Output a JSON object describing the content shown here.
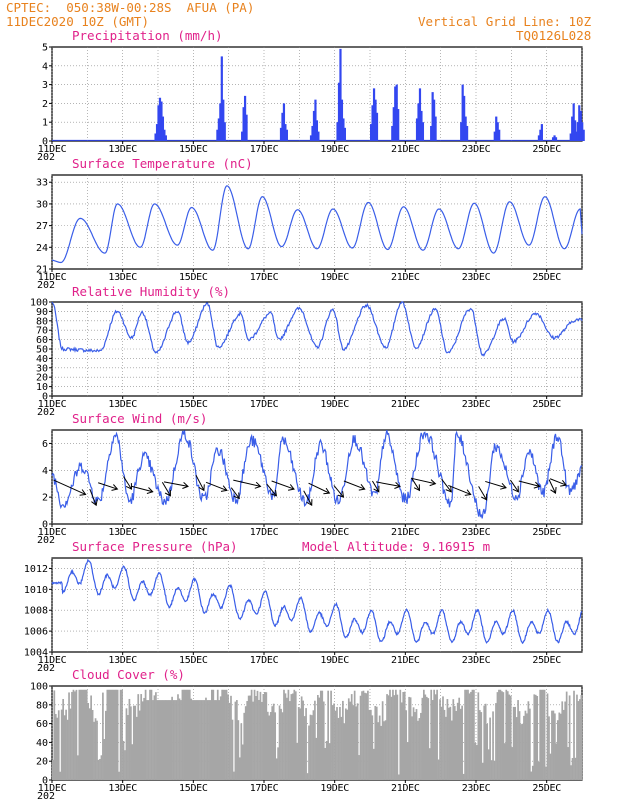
{
  "header": {
    "station_line": "CPTEC:  050:38W-00:28S  AFUA (PA)",
    "date_line": "11DEC2020 10Z (GMT)",
    "grid_note": "Vertical Grid Line: 10Z",
    "code": "TQ0126L028"
  },
  "colors": {
    "header": "#e8821e",
    "title": "#e0218a",
    "line": "#3a5ee8",
    "bar": "#3347f0",
    "cloud": "#a6a6a6",
    "arrow": "#000000"
  },
  "x_axis": {
    "labels": [
      "11DEC",
      "13DEC",
      "15DEC",
      "17DEC",
      "19DEC",
      "21DEC",
      "23DEC",
      "25DEC"
    ],
    "year_fragment": "202"
  },
  "chart_data": [
    {
      "type": "bar",
      "title": "Precipitation (mm/h)",
      "ylim": [
        0,
        5
      ],
      "yticks": [
        0,
        1,
        2,
        3,
        4,
        5
      ],
      "events": [
        {
          "t": 2.9,
          "h": [
            0.4,
            0.9,
            1.9,
            2.3,
            2.1,
            1.3,
            0.6,
            0.3
          ]
        },
        {
          "t": 4.65,
          "h": [
            0.6,
            1.2,
            2.0,
            4.5,
            2.2,
            1.0
          ]
        },
        {
          "t": 5.35,
          "h": [
            0.5,
            1.8,
            2.4,
            1.4
          ]
        },
        {
          "t": 6.45,
          "h": [
            0.7,
            1.5,
            2.0,
            0.9,
            0.6
          ]
        },
        {
          "t": 7.3,
          "h": [
            0.3,
            0.8,
            1.6,
            2.2,
            1.1,
            0.5
          ]
        },
        {
          "t": 8.05,
          "h": [
            1.0,
            3.1,
            4.9,
            2.2,
            1.2,
            0.7
          ]
        },
        {
          "t": 9.0,
          "h": [
            0.9,
            1.9,
            2.8,
            2.2,
            1.5
          ]
        },
        {
          "t": 9.6,
          "h": [
            0.8,
            1.8,
            2.9,
            3.0,
            1.7
          ]
        },
        {
          "t": 10.3,
          "h": [
            1.2,
            2.0,
            2.8,
            1.6,
            1.0
          ]
        },
        {
          "t": 10.7,
          "h": [
            0.8,
            2.6,
            2.2,
            1.3
          ]
        },
        {
          "t": 11.55,
          "h": [
            1.0,
            3.0,
            2.4,
            1.3,
            0.8
          ]
        },
        {
          "t": 12.5,
          "h": [
            0.5,
            1.3,
            1.0,
            0.6
          ]
        },
        {
          "t": 13.75,
          "h": [
            0.3,
            0.6,
            0.9
          ]
        },
        {
          "t": 14.15,
          "h": [
            0.2,
            0.3,
            0.2
          ]
        },
        {
          "t": 14.65,
          "h": [
            0.4,
            1.3,
            2.0,
            1.1,
            0.5
          ]
        },
        {
          "t": 14.85,
          "h": [
            1.0,
            1.9,
            1.6,
            1.0,
            0.6
          ]
        }
      ]
    },
    {
      "type": "line",
      "title": "Surface Temperature (nC)",
      "ylim": [
        21,
        34
      ],
      "yticks": [
        21,
        24,
        27,
        30,
        33
      ],
      "min_times": [
        0.25,
        1.5,
        2.5,
        3.55,
        4.55,
        5.55,
        6.5,
        7.5,
        8.5,
        9.5,
        10.5,
        11.5,
        12.5,
        13.5,
        14.5
      ],
      "max_times": [
        0.8,
        1.85,
        2.9,
        3.95,
        4.95,
        5.95,
        6.95,
        7.95,
        8.95,
        9.95,
        10.95,
        11.95,
        12.95,
        13.95,
        14.95
      ],
      "start": 22.2,
      "end": 25.8,
      "mins": [
        21.9,
        23.2,
        24.0,
        24.3,
        23.6,
        23.8,
        24.1,
        23.8,
        23.9,
        23.7,
        23.6,
        23.8,
        23.2,
        24.3,
        23.8
      ],
      "maxs": [
        28.0,
        30.0,
        30.0,
        29.5,
        32.5,
        31.0,
        29.2,
        29.3,
        30.2,
        29.6,
        29.3,
        30.1,
        30.3,
        31.0,
        29.3
      ]
    },
    {
      "type": "line",
      "title": "Relative Humidity (%)",
      "ylim": [
        0,
        100
      ],
      "yticks": [
        0,
        10,
        20,
        30,
        40,
        50,
        60,
        70,
        80,
        90,
        100
      ],
      "min_times": [
        0.3,
        1.35,
        2.25,
        2.95,
        3.85,
        4.7,
        5.55,
        6.4,
        7.5,
        8.25,
        9.45,
        10.3,
        11.2,
        12.2,
        13.05,
        14.2
      ],
      "max_times": [
        0.0,
        1.85,
        2.55,
        3.55,
        4.4,
        5.35,
        6.2,
        7.0,
        7.95,
        8.9,
        9.9,
        10.85,
        11.85,
        12.8,
        13.7,
        14.85
      ],
      "start": 100,
      "end": 81,
      "mins": [
        50,
        48,
        62,
        46,
        57,
        52,
        60,
        60,
        52,
        50,
        52,
        52,
        46,
        44,
        58,
        62
      ],
      "maxs": [
        100,
        90,
        89,
        90,
        98,
        88,
        88,
        93,
        92,
        96,
        100,
        92,
        93,
        82,
        88,
        81
      ]
    },
    {
      "type": "line",
      "title": "Surface Wind (m/s)",
      "ylim": [
        0,
        7
      ],
      "yticks": [
        0,
        2,
        4,
        6
      ],
      "min_times": [
        0.3,
        1.3,
        2.2,
        3.2,
        4.3,
        5.2,
        6.3,
        7.2,
        8.1,
        9.15,
        10.0,
        11.3,
        12.2,
        13.15,
        13.9,
        14.65
      ],
      "max_times": [
        0.0,
        0.85,
        1.8,
        2.6,
        3.75,
        4.7,
        5.65,
        6.5,
        7.6,
        8.55,
        9.45,
        10.55,
        11.45,
        12.55,
        13.5,
        14.3
      ],
      "start": 3.7,
      "end": 3.9,
      "mins": [
        1.5,
        1.7,
        1.7,
        1.7,
        1.8,
        1.9,
        2.0,
        1.6,
        1.7,
        2.1,
        1.8,
        1.6,
        0.6,
        2.1,
        2.3,
        2.4
      ],
      "maxs": [
        3.7,
        4.3,
        6.6,
        5.0,
        6.7,
        5.5,
        6.2,
        6.3,
        5.9,
        6.3,
        6.6,
        6.8,
        6.6,
        5.8,
        5.4,
        6.6
      ],
      "arrows": [
        {
          "x": 0.95,
          "y": 2.2,
          "dx": -2.0,
          "dy": 1.6
        },
        {
          "x": 1.25,
          "y": 1.4,
          "dx": -0.4,
          "dy": 1.8
        },
        {
          "x": 1.85,
          "y": 2.6,
          "dx": -1.2,
          "dy": 0.7
        },
        {
          "x": 2.25,
          "y": 2.6,
          "dx": -0.5,
          "dy": 1.4
        },
        {
          "x": 2.85,
          "y": 2.4,
          "dx": -1.3,
          "dy": 0.6
        },
        {
          "x": 3.35,
          "y": 2.1,
          "dx": -0.5,
          "dy": 1.5
        },
        {
          "x": 3.85,
          "y": 2.8,
          "dx": -1.5,
          "dy": 0.5
        },
        {
          "x": 4.3,
          "y": 2.5,
          "dx": -0.5,
          "dy": 1.7
        },
        {
          "x": 4.95,
          "y": 2.5,
          "dx": -1.3,
          "dy": 0.9
        },
        {
          "x": 5.3,
          "y": 1.9,
          "dx": -0.5,
          "dy": 1.2
        },
        {
          "x": 5.9,
          "y": 2.8,
          "dx": -1.7,
          "dy": 0.7
        },
        {
          "x": 6.35,
          "y": 2.1,
          "dx": -0.6,
          "dy": 1.3
        },
        {
          "x": 6.85,
          "y": 2.6,
          "dx": -1.4,
          "dy": 0.9
        },
        {
          "x": 7.35,
          "y": 1.4,
          "dx": -0.5,
          "dy": 1.6
        },
        {
          "x": 7.85,
          "y": 2.3,
          "dx": -1.3,
          "dy": 1.1
        },
        {
          "x": 8.25,
          "y": 2.0,
          "dx": -0.6,
          "dy": 1.3
        },
        {
          "x": 8.85,
          "y": 2.6,
          "dx": -1.3,
          "dy": 0.9
        },
        {
          "x": 9.25,
          "y": 2.4,
          "dx": -0.4,
          "dy": 1.2
        },
        {
          "x": 9.85,
          "y": 2.8,
          "dx": -1.5,
          "dy": 0.5
        },
        {
          "x": 10.4,
          "y": 2.5,
          "dx": -0.5,
          "dy": 1.4
        },
        {
          "x": 10.85,
          "y": 3.0,
          "dx": -1.5,
          "dy": 0.6
        },
        {
          "x": 11.3,
          "y": 2.4,
          "dx": -0.6,
          "dy": 1.4
        },
        {
          "x": 11.85,
          "y": 2.2,
          "dx": -1.4,
          "dy": 1.0
        },
        {
          "x": 12.3,
          "y": 1.8,
          "dx": -0.5,
          "dy": 1.5
        },
        {
          "x": 12.85,
          "y": 2.7,
          "dx": -1.3,
          "dy": 0.7
        },
        {
          "x": 13.2,
          "y": 2.4,
          "dx": -0.5,
          "dy": 1.3
        },
        {
          "x": 13.8,
          "y": 2.8,
          "dx": -1.3,
          "dy": 0.6
        },
        {
          "x": 14.25,
          "y": 2.3,
          "dx": -0.4,
          "dy": 1.5
        },
        {
          "x": 14.55,
          "y": 2.9,
          "dx": -1.0,
          "dy": 0.7
        }
      ]
    },
    {
      "type": "line",
      "title": "Surface Pressure (hPa)",
      "annotation": "Model Altitude: 9.16915 m",
      "ylim": [
        1004,
        1013
      ],
      "yticks": [
        1004,
        1006,
        1008,
        1010,
        1012
      ],
      "start": 1010.6,
      "end": 1006.8,
      "trend_start": 1011.2,
      "trend_end": 1006.4,
      "amplitude": 1.7,
      "cycles": 30
    },
    {
      "type": "bar",
      "title": "Cloud Cover (%)",
      "ylim": [
        0,
        100
      ],
      "yticks": [
        0,
        20,
        40,
        60,
        80,
        100
      ],
      "density_note": "hourly cloud fraction, frequent full cover with deep drops"
    }
  ]
}
